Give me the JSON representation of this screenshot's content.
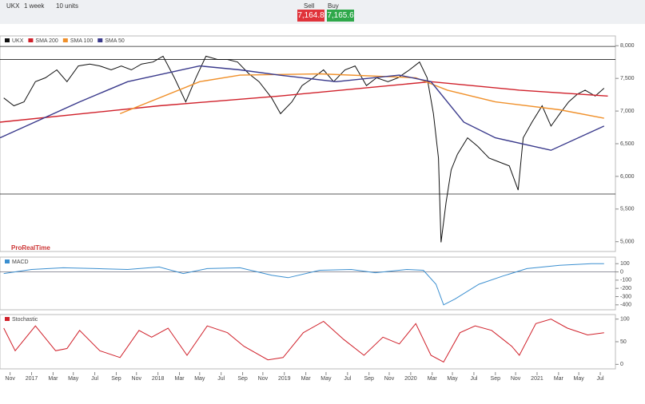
{
  "header": {
    "symbol": "UKX",
    "timeframe": "1 week",
    "units": "10 units",
    "sell_label": "Sell",
    "buy_label": "Buy",
    "sell_price": "7,164.8",
    "buy_price": "7,165.6",
    "logo": "ProRealTime"
  },
  "chart_data": [
    {
      "type": "line",
      "xlim": [
        2016.75,
        2021.62
      ],
      "ylim": [
        4850,
        8150
      ],
      "yticks": [
        {
          "value": 5000,
          "label": "5,000"
        },
        {
          "value": 5500,
          "label": "5,500"
        },
        {
          "value": 6000,
          "label": "6,000"
        },
        {
          "value": 6500,
          "label": "6,500"
        },
        {
          "value": 7000,
          "label": "7,000"
        },
        {
          "value": 7500,
          "label": "7,500"
        },
        {
          "value": 8000,
          "label": "8,000"
        }
      ],
      "xticks": [
        {
          "value": 2016.83,
          "label": "Nov"
        },
        2017,
        {
          "value": 2017.17,
          "label": "Mar"
        },
        {
          "value": 2017.33,
          "label": "May"
        },
        {
          "value": 2017.5,
          "label": "Jul"
        },
        {
          "value": 2017.67,
          "label": "Sep"
        },
        {
          "value": 2017.83,
          "label": "Nov"
        },
        2018,
        {
          "value": 2018.17,
          "label": "Mar"
        },
        {
          "value": 2018.33,
          "label": "May"
        },
        {
          "value": 2018.5,
          "label": "Jul"
        },
        {
          "value": 2018.67,
          "label": "Sep"
        },
        {
          "value": 2018.83,
          "label": "Nov"
        },
        2019,
        {
          "value": 2019.17,
          "label": "Mar"
        },
        {
          "value": 2019.33,
          "label": "May"
        },
        {
          "value": 2019.5,
          "label": "Jul"
        },
        {
          "value": 2019.67,
          "label": "Sep"
        },
        {
          "value": 2019.83,
          "label": "Nov"
        },
        2020,
        {
          "value": 2020.17,
          "label": "Mar"
        },
        {
          "value": 2020.33,
          "label": "May"
        },
        {
          "value": 2020.5,
          "label": "Jul"
        },
        {
          "value": 2020.67,
          "label": "Sep"
        },
        {
          "value": 2020.83,
          "label": "Nov"
        },
        2021,
        {
          "value": 2021.17,
          "label": "Mar"
        },
        {
          "value": 2021.33,
          "label": "May"
        },
        {
          "value": 2021.5,
          "label": "Jul"
        }
      ],
      "hlines": [
        7990,
        7790,
        5730
      ],
      "series": [
        {
          "name": "UKX",
          "color": "#111111",
          "x": [
            2016.78,
            2016.86,
            2016.94,
            2017.03,
            2017.11,
            2017.2,
            2017.28,
            2017.37,
            2017.46,
            2017.54,
            2017.63,
            2017.71,
            2017.79,
            2017.87,
            2017.96,
            2018.04,
            2018.13,
            2018.22,
            2018.3,
            2018.38,
            2018.47,
            2018.55,
            2018.63,
            2018.72,
            2018.8,
            2018.9,
            2018.97,
            2019.06,
            2019.14,
            2019.23,
            2019.31,
            2019.39,
            2019.48,
            2019.56,
            2019.65,
            2019.73,
            2019.82,
            2019.9,
            2019.99,
            2020.07,
            2020.13,
            2020.18,
            2020.22,
            2020.24,
            2020.28,
            2020.32,
            2020.37,
            2020.45,
            2020.53,
            2020.62,
            2020.7,
            2020.78,
            2020.85,
            2020.89,
            2020.96,
            2021.04,
            2021.11,
            2021.18,
            2021.25,
            2021.32,
            2021.38,
            2021.46,
            2021.53
          ],
          "values": [
            7200,
            7080,
            7140,
            7450,
            7510,
            7630,
            7450,
            7690,
            7720,
            7690,
            7630,
            7690,
            7630,
            7720,
            7750,
            7840,
            7510,
            7140,
            7510,
            7840,
            7790,
            7790,
            7750,
            7570,
            7450,
            7200,
            6960,
            7140,
            7390,
            7510,
            7630,
            7450,
            7630,
            7690,
            7390,
            7510,
            7450,
            7510,
            7630,
            7750,
            7510,
            6960,
            6280,
            4990,
            5600,
            6100,
            6340,
            6590,
            6460,
            6280,
            6220,
            6160,
            5790,
            6590,
            6830,
            7080,
            6770,
            6960,
            7140,
            7260,
            7320,
            7230,
            7350
          ]
        },
        {
          "name": "SMA 200",
          "color": "#d0202a",
          "x": [
            2016.75,
            2018.01,
            2018.96,
            2020.16,
            2020.86,
            2021.56
          ],
          "values": [
            6830,
            7080,
            7230,
            7450,
            7320,
            7230
          ]
        },
        {
          "name": "SMA 100",
          "color": "#f0902a",
          "x": [
            2017.7,
            2018.33,
            2018.65,
            2019.28,
            2020.04,
            2020.29,
            2020.67,
            2021.18,
            2021.53
          ],
          "values": [
            6960,
            7450,
            7550,
            7570,
            7510,
            7320,
            7140,
            7020,
            6890
          ]
        },
        {
          "name": "SMA 50",
          "color": "#3a3a8c",
          "x": [
            2016.75,
            2017.38,
            2017.76,
            2018.33,
            2018.65,
            2018.96,
            2019.41,
            2019.91,
            2020.16,
            2020.42,
            2020.67,
            2021.11,
            2021.53
          ],
          "values": [
            6590,
            7140,
            7450,
            7690,
            7630,
            7550,
            7450,
            7550,
            7450,
            6830,
            6590,
            6400,
            6770
          ]
        }
      ]
    },
    {
      "type": "line",
      "ylim": [
        -460,
        180
      ],
      "yticks": [
        100,
        0,
        -100,
        -200,
        -300,
        -400
      ],
      "series": [
        {
          "name": "MACD",
          "color": "#3b8fd0",
          "x": [
            2016.78,
            2017.0,
            2017.25,
            2017.51,
            2017.76,
            2018.01,
            2018.2,
            2018.39,
            2018.65,
            2018.9,
            2019.03,
            2019.28,
            2019.53,
            2019.72,
            2019.97,
            2020.1,
            2020.2,
            2020.26,
            2020.35,
            2020.54,
            2020.73,
            2020.92,
            2021.18,
            2021.43,
            2021.53
          ],
          "values": [
            -20,
            30,
            50,
            40,
            30,
            60,
            -20,
            40,
            50,
            -40,
            -70,
            20,
            30,
            -10,
            30,
            20,
            -150,
            -400,
            -330,
            -150,
            -50,
            40,
            80,
            100,
            100
          ]
        }
      ]
    },
    {
      "type": "line",
      "ylim": [
        -10,
        110
      ],
      "yticks": [
        0,
        50,
        100
      ],
      "series": [
        {
          "name": "Stochastic",
          "color": "#d0202a",
          "x": [
            2016.78,
            2016.87,
            2017.03,
            2017.19,
            2017.28,
            2017.38,
            2017.54,
            2017.7,
            2017.85,
            2017.95,
            2018.08,
            2018.23,
            2018.39,
            2018.55,
            2018.68,
            2018.87,
            2018.99,
            2019.15,
            2019.31,
            2019.47,
            2019.63,
            2019.78,
            2019.91,
            2020.04,
            2020.16,
            2020.26,
            2020.39,
            2020.51,
            2020.64,
            2020.8,
            2020.86,
            2020.99,
            2021.11,
            2021.24,
            2021.4,
            2021.53
          ],
          "values": [
            80,
            30,
            85,
            30,
            35,
            75,
            30,
            15,
            75,
            60,
            80,
            20,
            85,
            70,
            40,
            10,
            15,
            70,
            95,
            55,
            20,
            60,
            45,
            90,
            20,
            5,
            70,
            85,
            75,
            40,
            20,
            90,
            100,
            80,
            65,
            70
          ]
        }
      ]
    }
  ]
}
